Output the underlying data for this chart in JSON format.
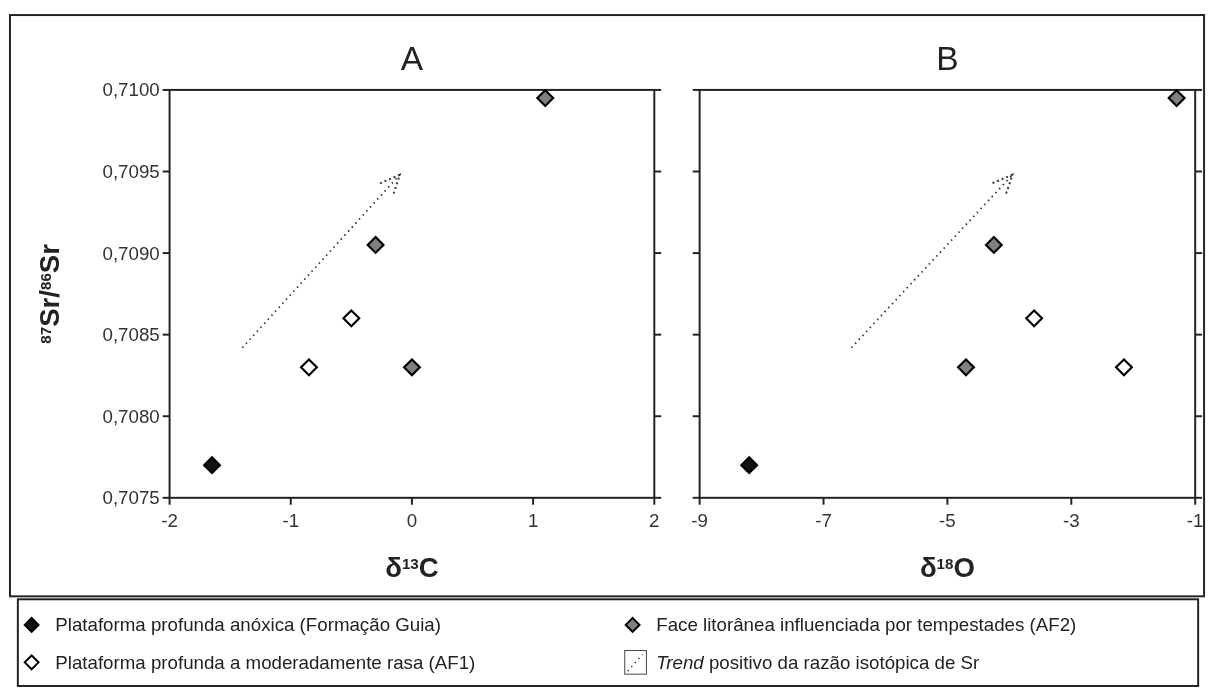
{
  "chart_data": [
    {
      "type": "scatter",
      "title": "A",
      "xlabel": "δ$^{13}$C",
      "ylabel": "$^{87}$Sr/$^{86}$Sr",
      "xlim": [
        -2,
        2
      ],
      "xticks": [
        -2,
        -1,
        0,
        1,
        2
      ],
      "ylim": [
        0.7075,
        0.71
      ],
      "yticks": [
        {
          "value": 0.7075,
          "label": "0,7075"
        },
        {
          "value": 0.708,
          "label": "0,7080"
        },
        {
          "value": 0.7085,
          "label": "0,7085"
        },
        {
          "value": 0.709,
          "label": "0,7090"
        },
        {
          "value": 0.7095,
          "label": "0,7095"
        },
        {
          "value": 0.71,
          "label": "0,7100"
        }
      ],
      "marker": "diamond",
      "legend": "bottom",
      "grid": false,
      "series": [
        {
          "name": "Plataforma profunda anóxica (Formação Guia)",
          "color": "#111111",
          "x": [
            -1.65
          ],
          "values": [
            0.7077
          ]
        },
        {
          "name": "Face litorânea influenciada por tempestades (AF2)",
          "color": "#808080",
          "x": [
            -0.3,
            0,
            1.1
          ],
          "values": [
            0.70905,
            0.7083,
            0.70995
          ]
        },
        {
          "name": "Plataforma profunda a moderadamente rasa (AF1)",
          "color": "#ffffff",
          "x": [
            -0.85,
            -0.5
          ],
          "values": [
            0.7083,
            0.7086
          ]
        },
        {
          "name": "Trend positivo da razão isotópica de Sr",
          "type": "line",
          "marker": "none",
          "line_style": "dotted",
          "color": "#333333",
          "x": [
            -1.4,
            -0.1
          ],
          "values": [
            0.70842,
            0.70948
          ]
        }
      ]
    },
    {
      "type": "scatter",
      "title": "B",
      "xlabel": "δ$^{18}$O",
      "xlim": [
        -9,
        -1
      ],
      "xticks": [
        -9,
        -7,
        -5,
        -3,
        -1
      ],
      "ylim": [
        0.7075,
        0.71
      ],
      "yticks": [
        0.7075,
        0.708,
        0.7085,
        0.709,
        0.7095,
        0.71
      ],
      "tick_labels": "x",
      "marker": "diamond",
      "grid": false,
      "series": [
        {
          "color": "#111111",
          "x": [
            -8.2
          ],
          "values": [
            0.7077
          ]
        },
        {
          "color": "#808080",
          "x": [
            -4.7,
            -4.25,
            -1.3
          ],
          "values": [
            0.7083,
            0.70905,
            0.70995
          ]
        },
        {
          "color": "#ffffff",
          "x": [
            -3.6,
            -2.15
          ],
          "values": [
            0.7086,
            0.7083
          ]
        },
        {
          "type": "line",
          "marker": "none",
          "line_style": "dotted",
          "color": "#333333",
          "x": [
            -6.55,
            -3.95
          ],
          "values": [
            0.70842,
            0.70948
          ]
        }
      ]
    }
  ]
}
